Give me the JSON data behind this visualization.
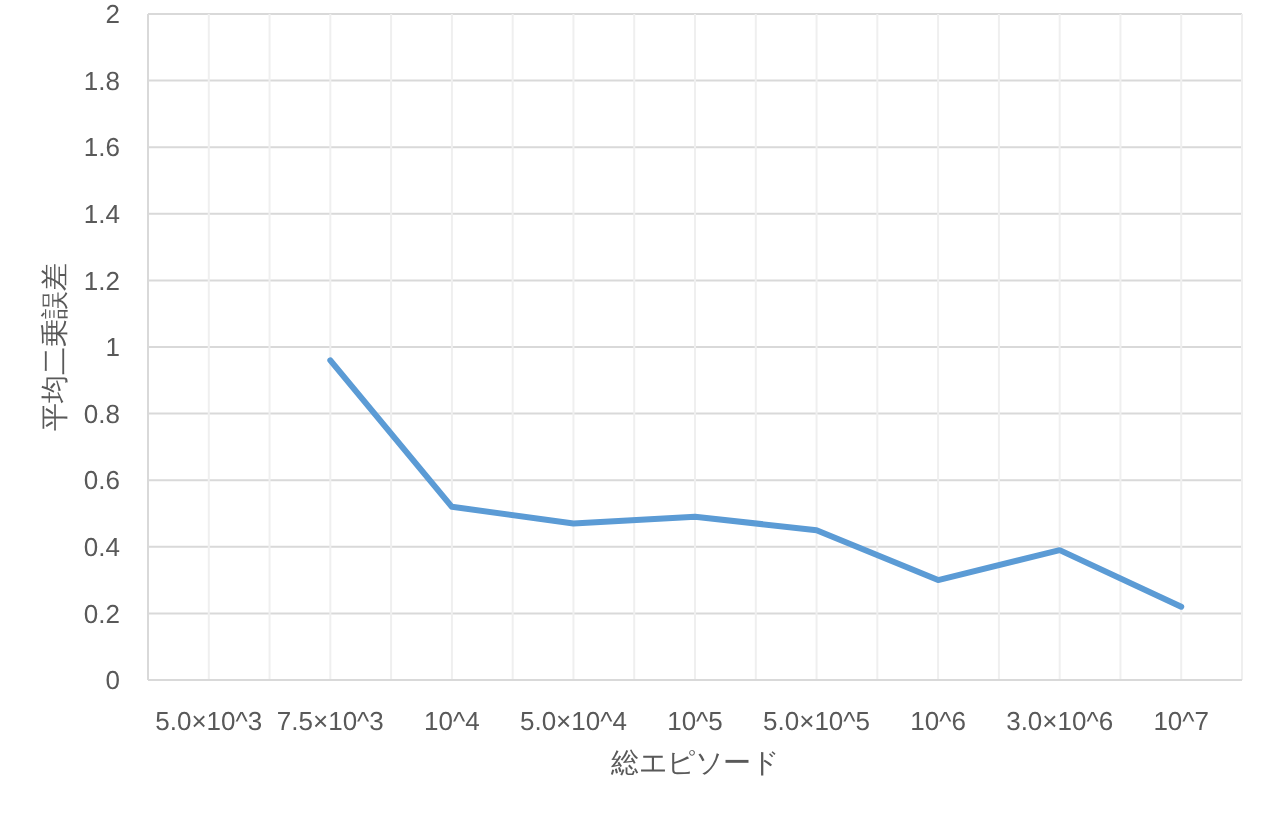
{
  "chart_data": {
    "type": "line",
    "xlabel": "総エピソード",
    "ylabel": "平均二乗誤差",
    "categories": [
      "5.0×10^3",
      "7.5×10^3",
      "10^4",
      "5.0×10^4",
      "10^5",
      "5.0×10^5",
      "10^6",
      "3.0×10^6",
      "10^7"
    ],
    "series": [
      {
        "color": "#5b9bd5",
        "values": [
          null,
          0.96,
          0.52,
          0.47,
          0.49,
          0.45,
          0.3,
          0.39,
          0.22
        ]
      }
    ],
    "ylim": [
      0,
      2
    ],
    "yticks": [
      0,
      0.2,
      0.4,
      0.6,
      0.8,
      1,
      1.2,
      1.4,
      1.6,
      1.8,
      2
    ],
    "grid": true,
    "marker": "none",
    "line_style": "solid"
  }
}
